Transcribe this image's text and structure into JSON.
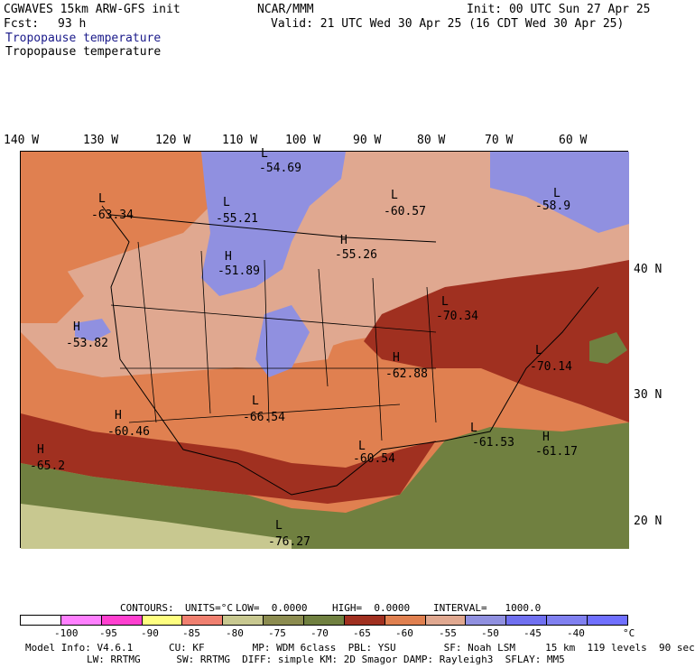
{
  "header": {
    "model": "CGWAVES 15km ARW-GFS init",
    "org": "NCAR/MMM",
    "init": "Init: 00 UTC Sun 27 Apr 25",
    "fcst_label": "Fcst:",
    "fcst_value": "93 h",
    "valid": "Valid: 21 UTC Wed 30 Apr 25 (16 CDT Wed 30 Apr 25)",
    "field_title_1": "Tropopause temperature",
    "field_title_2": "Tropopause temperature"
  },
  "axes": {
    "lon_labels": [
      "140 W",
      "130 W",
      "120 W",
      "110 W",
      "100 W",
      "90 W",
      "80 W",
      "70 W",
      "60 W"
    ],
    "lat_labels": [
      "40 N",
      "30 N",
      "20 N"
    ]
  },
  "centers": [
    {
      "type": "L",
      "value": "-54.69"
    },
    {
      "type": "L",
      "value": "-63.34"
    },
    {
      "type": "L",
      "value": "-55.21"
    },
    {
      "type": "L",
      "value": "-60.57"
    },
    {
      "type": "L",
      "value": "-58.9"
    },
    {
      "type": "H",
      "value": "-51.89"
    },
    {
      "type": "H",
      "value": "-55.26"
    },
    {
      "type": "H",
      "value": "-53.82"
    },
    {
      "type": "L",
      "value": "-70.34"
    },
    {
      "type": "L",
      "value": "-70.14"
    },
    {
      "type": "H",
      "value": "-62.88"
    },
    {
      "type": "L",
      "value": "-66.54"
    },
    {
      "type": "H",
      "value": "-60.46"
    },
    {
      "type": "H",
      "value": "-65.2"
    },
    {
      "type": "L",
      "value": "-60.54"
    },
    {
      "type": "L",
      "value": "-61.53"
    },
    {
      "type": "H",
      "value": "-61.17"
    },
    {
      "type": "L",
      "value": "-76.27"
    }
  ],
  "contours_line": {
    "label": "CONTOURS:",
    "units": "UNITS=°C",
    "low": "LOW=  0.0000",
    "high": "HIGH=  0.0000",
    "interval": "INTERVAL=   1000.0"
  },
  "colorbar": {
    "colors": [
      "#ffffff",
      "#ff80ff",
      "#ff40d0",
      "#ffff80",
      "#f08070",
      "#c8c890",
      "#8c8c50",
      "#708040",
      "#a03020",
      "#e08050",
      "#e0a890",
      "#9090e0",
      "#7070f0",
      "#8080f0",
      "#7070ff"
    ],
    "ticks": [
      "-100",
      "-95",
      "-90",
      "-85",
      "-80",
      "-75",
      "-70",
      "-65",
      "-60",
      "-55",
      "-50",
      "-45",
      "-40",
      "°C"
    ]
  },
  "footer": {
    "line1": "Model Info: V4.6.1      CU: KF        MP: WDM 6class  PBL: YSU        SF: Noah LSM     15 km  119 levels  90 sec",
    "line2": "LW: RRTMG      SW: RRTMG  DIFF: simple KM: 2D Smagor DAMP: Rayleigh3  SFLAY: MM5"
  }
}
